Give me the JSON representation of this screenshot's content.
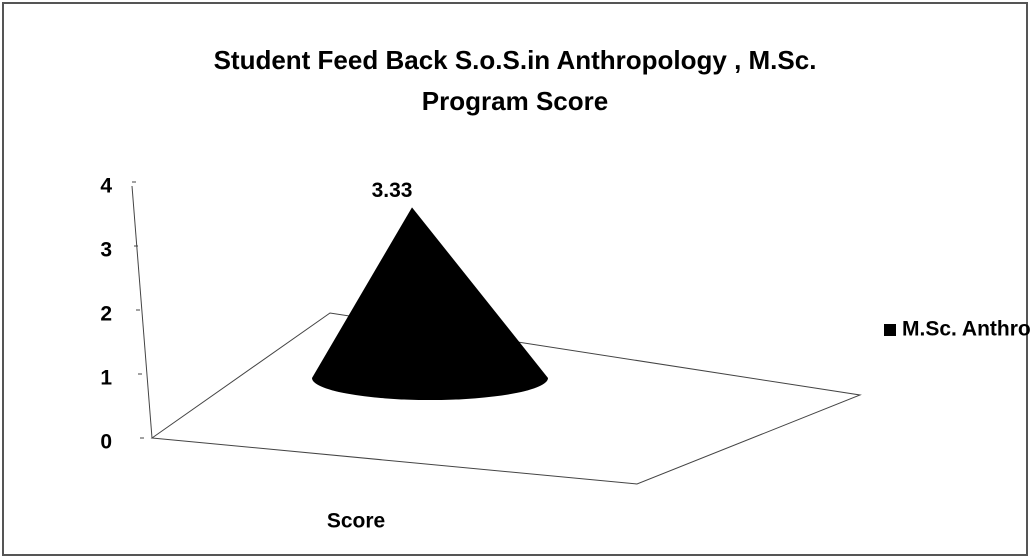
{
  "chart_data": {
    "type": "bar",
    "bar_shape": "cone",
    "title": [
      "Student Feed Back S.o.S.in Anthropology , M.Sc.",
      "Program Score"
    ],
    "categories": [
      "Score"
    ],
    "series": [
      {
        "name": "M.Sc. Anthropology",
        "color": "#000000",
        "values": [
          3.33
        ]
      }
    ],
    "ylim": [
      0,
      4
    ],
    "yticks": [
      0,
      1,
      2,
      3,
      4
    ],
    "grid": false,
    "legend": "right"
  }
}
